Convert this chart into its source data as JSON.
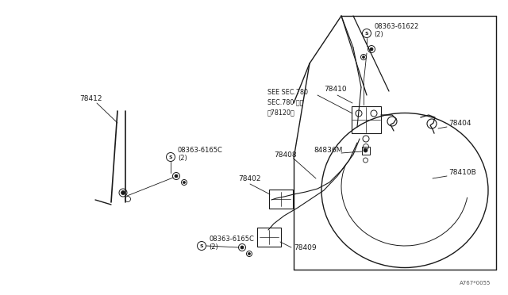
{
  "bg_color": "#ffffff",
  "line_color": "#1a1a1a",
  "text_color": "#1a1a1a",
  "figsize": [
    6.4,
    3.72
  ],
  "dpi": 100,
  "watermark": "A767*0055",
  "note_text": "SEE SEC.780\nSEC.780 参照\n（78120）",
  "label_78412": "78412",
  "label_78402": "78402",
  "label_78408": "78408",
  "label_78409": "78409",
  "label_84836M": "84836M",
  "label_78410": "78410",
  "label_78404": "78404",
  "label_78410B": "78410B",
  "label_s1": "08363-6165C",
  "label_s1_qty": "(2)",
  "label_s2": "08363-6165C",
  "label_s2_qty": "(2)",
  "label_s3": "08363-61622",
  "label_s3_qty": "(2)"
}
